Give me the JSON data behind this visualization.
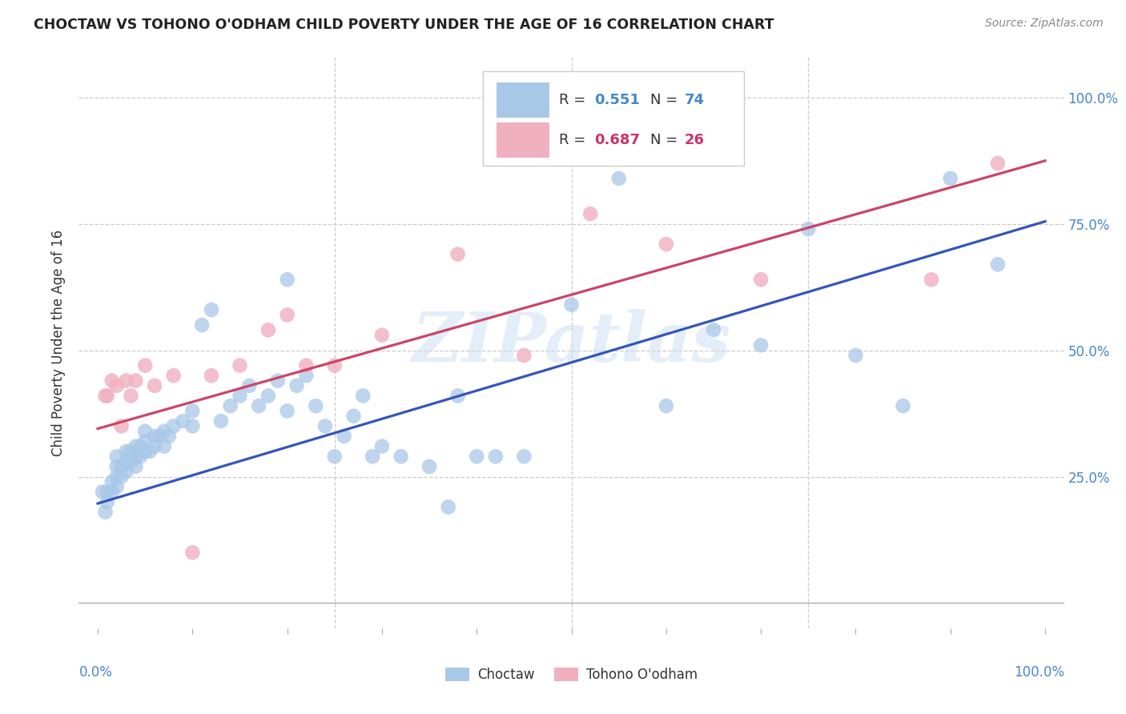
{
  "title": "CHOCTAW VS TOHONO O'ODHAM CHILD POVERTY UNDER THE AGE OF 16 CORRELATION CHART",
  "source": "Source: ZipAtlas.com",
  "ylabel": "Child Poverty Under the Age of 16",
  "xlim": [
    -0.02,
    1.02
  ],
  "ylim": [
    -0.05,
    1.08
  ],
  "background_color": "#ffffff",
  "grid_color": "#cccccc",
  "watermark": "ZIPatlas",
  "blue_color": "#a8c8e8",
  "pink_color": "#f0b0c0",
  "blue_line_color": "#3355bb",
  "pink_line_color": "#cc4466",
  "legend_R_blue": "0.551",
  "legend_N_blue": "74",
  "legend_R_pink": "0.687",
  "legend_N_pink": "26",
  "blue_trend_x": [
    0.0,
    1.0
  ],
  "blue_trend_y": [
    0.197,
    0.755
  ],
  "pink_trend_x": [
    0.0,
    1.0
  ],
  "pink_trend_y": [
    0.345,
    0.875
  ],
  "blue_x": [
    0.005,
    0.008,
    0.01,
    0.01,
    0.015,
    0.015,
    0.02,
    0.02,
    0.02,
    0.02,
    0.025,
    0.025,
    0.03,
    0.03,
    0.03,
    0.035,
    0.035,
    0.04,
    0.04,
    0.04,
    0.045,
    0.045,
    0.05,
    0.05,
    0.05,
    0.055,
    0.06,
    0.06,
    0.065,
    0.07,
    0.07,
    0.075,
    0.08,
    0.09,
    0.1,
    0.1,
    0.11,
    0.12,
    0.13,
    0.14,
    0.15,
    0.16,
    0.17,
    0.18,
    0.19,
    0.2,
    0.2,
    0.21,
    0.22,
    0.23,
    0.24,
    0.25,
    0.26,
    0.27,
    0.28,
    0.29,
    0.3,
    0.32,
    0.35,
    0.37,
    0.38,
    0.4,
    0.42,
    0.45,
    0.5,
    0.55,
    0.6,
    0.65,
    0.7,
    0.75,
    0.8,
    0.85,
    0.9,
    0.95
  ],
  "blue_y": [
    0.22,
    0.18,
    0.2,
    0.22,
    0.24,
    0.22,
    0.23,
    0.25,
    0.27,
    0.29,
    0.25,
    0.27,
    0.26,
    0.28,
    0.3,
    0.28,
    0.3,
    0.27,
    0.29,
    0.31,
    0.29,
    0.31,
    0.3,
    0.32,
    0.34,
    0.3,
    0.31,
    0.33,
    0.33,
    0.31,
    0.34,
    0.33,
    0.35,
    0.36,
    0.35,
    0.38,
    0.55,
    0.58,
    0.36,
    0.39,
    0.41,
    0.43,
    0.39,
    0.41,
    0.44,
    0.64,
    0.38,
    0.43,
    0.45,
    0.39,
    0.35,
    0.29,
    0.33,
    0.37,
    0.41,
    0.29,
    0.31,
    0.29,
    0.27,
    0.19,
    0.41,
    0.29,
    0.29,
    0.29,
    0.59,
    0.84,
    0.39,
    0.54,
    0.51,
    0.74,
    0.49,
    0.39,
    0.84,
    0.67
  ],
  "pink_x": [
    0.008,
    0.01,
    0.015,
    0.02,
    0.025,
    0.03,
    0.035,
    0.04,
    0.05,
    0.06,
    0.08,
    0.1,
    0.12,
    0.15,
    0.18,
    0.2,
    0.22,
    0.25,
    0.3,
    0.38,
    0.45,
    0.52,
    0.6,
    0.7,
    0.88,
    0.95
  ],
  "pink_y": [
    0.41,
    0.41,
    0.44,
    0.43,
    0.35,
    0.44,
    0.41,
    0.44,
    0.47,
    0.43,
    0.45,
    0.1,
    0.45,
    0.47,
    0.54,
    0.57,
    0.47,
    0.47,
    0.53,
    0.69,
    0.49,
    0.77,
    0.71,
    0.64,
    0.64,
    0.87
  ]
}
